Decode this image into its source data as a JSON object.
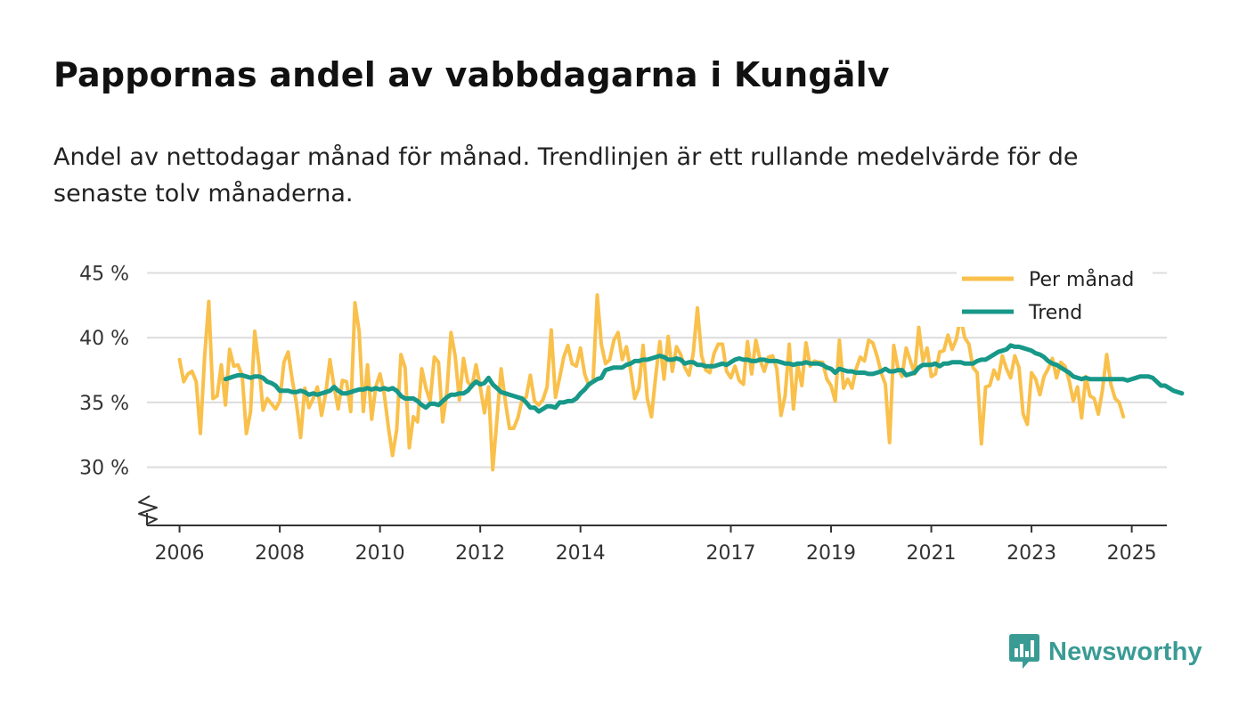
{
  "title": "Pappornas andel av vabbdagarna i Kungälv",
  "subtitle": "Andel av nettodagar månad för månad. Trendlinjen är ett rullande medelvärde för de senaste tolv månaderna.",
  "brand": {
    "name": "Newsworthy",
    "icon": "newsworthy-logo-icon",
    "color": "#3a9b94"
  },
  "chart_data": {
    "type": "line",
    "title": "Pappornas andel av vabbdagarna i Kungälv",
    "xlabel": "",
    "ylabel": "",
    "ylim": [
      25.5,
      46
    ],
    "xlim": [
      2005.35,
      2025.7
    ],
    "y_ticks": [
      {
        "value": 30,
        "label": "30 %"
      },
      {
        "value": 35,
        "label": "35 %"
      },
      {
        "value": 40,
        "label": "40 %"
      },
      {
        "value": 45,
        "label": "45 %"
      }
    ],
    "x_ticks": [
      {
        "value": 2006,
        "label": "2006"
      },
      {
        "value": 2008,
        "label": "2008"
      },
      {
        "value": 2010,
        "label": "2010"
      },
      {
        "value": 2012,
        "label": "2012"
      },
      {
        "value": 2014,
        "label": "2014"
      },
      {
        "value": 2017,
        "label": "2017"
      },
      {
        "value": 2019,
        "label": "2019"
      },
      {
        "value": 2021,
        "label": "2021"
      },
      {
        "value": 2023,
        "label": "2023"
      },
      {
        "value": 2025,
        "label": "2025"
      }
    ],
    "grid": true,
    "axis_break": true,
    "legend_position": "top-right",
    "series": [
      {
        "name": "Per månad",
        "color": "#f9c04b",
        "start": 2006.0,
        "step": 0.0833333,
        "values": [
          38.3,
          36.6,
          37.2,
          37.4,
          36.6,
          32.6,
          38.5,
          42.8,
          35.3,
          35.5,
          37.9,
          34.8,
          39.1,
          37.8,
          37.9,
          37.1,
          32.6,
          34.3,
          40.5,
          37.9,
          34.4,
          35.3,
          34.9,
          34.5,
          35.1,
          38.1,
          38.9,
          36.7,
          34.9,
          32.3,
          36.1,
          34.6,
          35.3,
          36.2,
          34.0,
          35.7,
          38.3,
          36.2,
          34.5,
          36.7,
          36.6,
          34.3,
          42.7,
          40.5,
          34.3,
          37.9,
          33.7,
          36.2,
          37.2,
          35.7,
          33.1,
          30.9,
          32.9,
          38.7,
          37.7,
          31.5,
          33.9,
          33.5,
          37.6,
          36.1,
          35.1,
          38.5,
          38.1,
          33.5,
          35.8,
          40.4,
          38.6,
          35.2,
          38.4,
          36.6,
          36.2,
          37.9,
          36.2,
          34.2,
          36.2,
          29.8,
          33.7,
          37.6,
          35.1,
          33.0,
          33.0,
          33.8,
          35.2,
          35.4,
          37.1,
          35.1,
          34.8,
          35.2,
          36.2,
          40.6,
          35.4,
          36.9,
          38.5,
          39.4,
          38.0,
          37.8,
          39.2,
          37.2,
          36.3,
          36.6,
          43.3,
          39.5,
          38.0,
          38.3,
          39.8,
          40.4,
          38.3,
          39.3,
          37.5,
          35.3,
          36.1,
          39.4,
          35.3,
          33.9,
          37.0,
          39.7,
          36.8,
          40.1,
          37.4,
          39.3,
          38.7,
          37.7,
          37.1,
          38.8,
          42.3,
          38.6,
          37.5,
          37.3,
          38.8,
          39.5,
          39.5,
          37.4,
          36.9,
          37.8,
          36.7,
          36.4,
          39.7,
          37.2,
          39.8,
          38.3,
          37.4,
          38.5,
          38.6,
          37.6,
          34.0,
          35.5,
          39.5,
          34.5,
          37.9,
          36.3,
          39.6,
          37.8,
          38.2,
          38.1,
          38.1,
          36.8,
          36.3,
          35.1,
          39.8,
          36.1,
          36.8,
          36.1,
          37.6,
          38.5,
          38.2,
          39.8,
          39.6,
          38.6,
          37.3,
          36.4,
          31.9,
          39.4,
          37.7,
          37.0,
          39.2,
          38.2,
          37.2,
          40.8,
          38.2,
          39.2,
          37.0,
          37.2,
          38.9,
          39.0,
          40.2,
          39.1,
          39.9,
          41.6,
          40.0,
          39.5,
          37.7,
          37.3,
          31.8,
          36.2,
          36.3,
          37.5,
          36.8,
          38.6,
          37.6,
          36.9,
          38.6,
          37.7,
          34.1,
          33.3,
          37.3,
          36.8,
          35.6,
          37.0,
          37.6,
          38.4,
          36.9,
          38.1,
          37.8,
          36.7,
          35.1,
          36.2,
          33.8,
          37.0,
          35.5,
          35.3,
          34.1,
          36.0,
          38.7,
          36.4,
          35.3,
          35.0,
          33.9
        ]
      },
      {
        "name": "Trend",
        "color": "#179888",
        "start": 2006.9167,
        "step": 0.0833333,
        "values": [
          36.8,
          36.9,
          37.0,
          37.1,
          37.1,
          37.0,
          36.9,
          37.0,
          37.0,
          36.9,
          36.6,
          36.5,
          36.3,
          35.9,
          35.9,
          35.9,
          35.8,
          35.8,
          35.9,
          35.8,
          35.6,
          35.7,
          35.6,
          35.7,
          35.8,
          35.9,
          36.2,
          35.9,
          35.7,
          35.7,
          35.8,
          35.9,
          36.0,
          36.0,
          36.1,
          36.0,
          36.1,
          36.0,
          36.1,
          36.0,
          36.1,
          35.9,
          35.5,
          35.3,
          35.3,
          35.3,
          35.1,
          34.8,
          34.6,
          34.9,
          34.9,
          34.8,
          35.1,
          35.4,
          35.6,
          35.6,
          35.7,
          35.7,
          35.9,
          36.3,
          36.6,
          36.4,
          36.5,
          36.9,
          36.4,
          36.1,
          35.8,
          35.7,
          35.6,
          35.5,
          35.4,
          35.3,
          35.0,
          34.6,
          34.6,
          34.3,
          34.5,
          34.7,
          34.7,
          34.6,
          35.0,
          35.0,
          35.1,
          35.1,
          35.3,
          35.7,
          36.0,
          36.4,
          36.6,
          36.8,
          36.9,
          37.5,
          37.6,
          37.7,
          37.7,
          37.7,
          37.9,
          38.0,
          38.2,
          38.2,
          38.3,
          38.3,
          38.4,
          38.5,
          38.6,
          38.5,
          38.3,
          38.3,
          38.4,
          38.3,
          38.0,
          38.1,
          38.1,
          37.9,
          37.9,
          37.8,
          37.8,
          37.8,
          37.9,
          38.0,
          37.9,
          38.1,
          38.3,
          38.4,
          38.3,
          38.3,
          38.2,
          38.2,
          38.3,
          38.3,
          38.2,
          38.2,
          38.2,
          38.1,
          38.0,
          38.0,
          37.9,
          38.0,
          38.0,
          38.1,
          38.0,
          38.0,
          38.0,
          37.9,
          37.7,
          37.6,
          37.3,
          37.6,
          37.5,
          37.4,
          37.4,
          37.3,
          37.3,
          37.3,
          37.2,
          37.2,
          37.3,
          37.4,
          37.6,
          37.4,
          37.4,
          37.5,
          37.5,
          37.1,
          37.2,
          37.3,
          37.7,
          37.9,
          37.9,
          37.9,
          38.0,
          37.8,
          38.0,
          38.0,
          38.1,
          38.1,
          38.1,
          38.0,
          38.0,
          38.0,
          38.2,
          38.3,
          38.3,
          38.5,
          38.7,
          38.9,
          39.0,
          39.1,
          39.4,
          39.3,
          39.3,
          39.2,
          39.1,
          39.0,
          38.8,
          38.7,
          38.5,
          38.2,
          38.0,
          37.9,
          37.7,
          37.5,
          37.3,
          37.0,
          36.9,
          36.8,
          36.9,
          36.8,
          36.8,
          36.8,
          36.8,
          36.8,
          36.8,
          36.8,
          36.8,
          36.8,
          36.7,
          36.8,
          36.9,
          37.0,
          37.0,
          37.0,
          36.9,
          36.6,
          36.3,
          36.3,
          36.1,
          35.9,
          35.8,
          35.7
        ]
      }
    ]
  }
}
